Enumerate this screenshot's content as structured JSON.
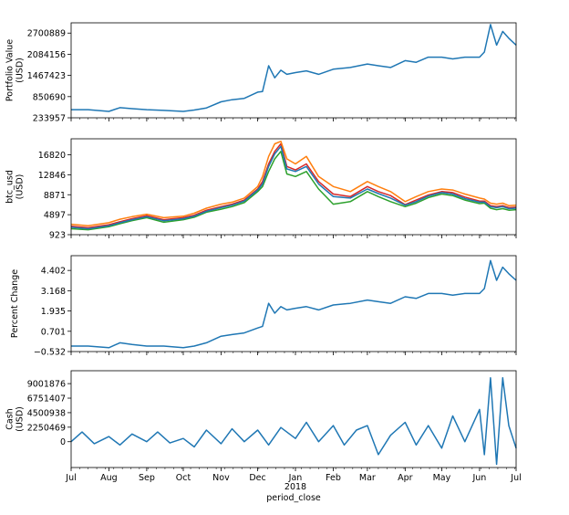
{
  "chart_data": [
    {
      "type": "line",
      "ylabel": "Portfolio Value\n(USD)",
      "ylim": [
        233957,
        3000000
      ],
      "yticks": [
        "233957",
        "850690",
        "1467423",
        "2084156",
        "2700889"
      ],
      "yticks_values": [
        233957,
        850690,
        1467423,
        2084156,
        2700889
      ],
      "series": [
        {
          "color": "#1f77b4",
          "x": [
            "2017-07-01",
            "2017-07-15",
            "2017-08-01",
            "2017-08-10",
            "2017-08-20",
            "2017-09-01",
            "2017-09-15",
            "2017-10-01",
            "2017-10-10",
            "2017-10-20",
            "2017-11-01",
            "2017-11-10",
            "2017-11-20",
            "2017-12-01",
            "2017-12-05",
            "2017-12-10",
            "2017-12-15",
            "2017-12-20",
            "2017-12-25",
            "2018-01-01",
            "2018-01-10",
            "2018-01-20",
            "2018-02-01",
            "2018-02-15",
            "2018-03-01",
            "2018-03-10",
            "2018-03-20",
            "2018-04-01",
            "2018-04-10",
            "2018-04-20",
            "2018-05-01",
            "2018-05-10",
            "2018-05-20",
            "2018-06-01",
            "2018-06-05",
            "2018-06-10",
            "2018-06-15",
            "2018-06-20",
            "2018-06-25",
            "2018-07-01"
          ],
          "y": [
            470000,
            470000,
            420000,
            530000,
            500000,
            470000,
            450000,
            420000,
            460000,
            520000,
            700000,
            760000,
            800000,
            980000,
            1000000,
            1750000,
            1400000,
            1620000,
            1500000,
            1550000,
            1600000,
            1500000,
            1650000,
            1700000,
            1800000,
            1750000,
            1700000,
            1900000,
            1850000,
            2000000,
            2000000,
            1950000,
            2000000,
            2000000,
            2150000,
            2950000,
            2350000,
            2750000,
            2550000,
            2350000
          ]
        }
      ]
    },
    {
      "type": "line",
      "ylabel": "btc_usd\n(USD)",
      "ylim": [
        923,
        20000
      ],
      "yticks": [
        "923",
        "4897",
        "8871",
        "12846",
        "16820"
      ],
      "yticks_values": [
        923,
        4897,
        8871,
        12846,
        16820
      ],
      "x": [
        "2017-07-01",
        "2017-07-15",
        "2017-08-01",
        "2017-08-10",
        "2017-08-20",
        "2017-09-01",
        "2017-09-15",
        "2017-10-01",
        "2017-10-10",
        "2017-10-20",
        "2017-11-01",
        "2017-11-10",
        "2017-11-20",
        "2017-12-01",
        "2017-12-05",
        "2017-12-10",
        "2017-12-15",
        "2017-12-20",
        "2017-12-25",
        "2018-01-01",
        "2018-01-10",
        "2018-01-20",
        "2018-02-01",
        "2018-02-15",
        "2018-03-01",
        "2018-03-10",
        "2018-03-20",
        "2018-04-01",
        "2018-04-10",
        "2018-04-20",
        "2018-05-01",
        "2018-05-10",
        "2018-05-20",
        "2018-06-01",
        "2018-06-05",
        "2018-06-10",
        "2018-06-15",
        "2018-06-20",
        "2018-06-25",
        "2018-07-01"
      ],
      "series": [
        {
          "color": "#d62728",
          "y": [
            2600,
            2300,
            2900,
            3500,
            4100,
            4700,
            3900,
            4300,
            4800,
            5800,
            6500,
            7000,
            7800,
            10000,
            11500,
            15000,
            17500,
            19000,
            14500,
            13800,
            15000,
            11500,
            9000,
            8500,
            10500,
            9500,
            8700,
            6900,
            7800,
            8800,
            9500,
            9300,
            8400,
            7600,
            7600,
            6700,
            6500,
            6700,
            6300,
            6400
          ]
        },
        {
          "color": "#ff7f0e",
          "y": [
            3000,
            2700,
            3300,
            4000,
            4500,
            5000,
            4300,
            4600,
            5200,
            6200,
            7000,
            7400,
            8200,
            10500,
            12500,
            16500,
            19000,
            19500,
            16000,
            15000,
            16500,
            12500,
            10500,
            9500,
            11500,
            10500,
            9500,
            7500,
            8500,
            9500,
            10000,
            9800,
            9000,
            8200,
            8000,
            7200,
            7000,
            7200,
            6700,
            6800
          ]
        },
        {
          "color": "#2ca02c",
          "y": [
            2100,
            1900,
            2500,
            3100,
            3700,
            4300,
            3400,
            3900,
            4400,
            5400,
            6000,
            6500,
            7300,
            9500,
            10500,
            13500,
            16000,
            17500,
            13000,
            12500,
            13500,
            10000,
            7000,
            7500,
            9500,
            8500,
            7500,
            6500,
            7200,
            8300,
            9000,
            8700,
            7800,
            7100,
            7200,
            6200,
            5900,
            6100,
            5800,
            5900
          ]
        },
        {
          "color": "#1f77b4",
          "y": [
            2400,
            2100,
            2700,
            3300,
            3900,
            4500,
            3700,
            4100,
            4600,
            5600,
            6300,
            6800,
            7600,
            9800,
            11000,
            14500,
            17000,
            18500,
            14000,
            13500,
            14500,
            11000,
            8500,
            8200,
            10000,
            9100,
            8200,
            6800,
            7500,
            8600,
            9300,
            9000,
            8100,
            7400,
            7400,
            6500,
            6300,
            6500,
            6100,
            6200
          ]
        }
      ]
    },
    {
      "type": "line",
      "ylabel": "Percent Change",
      "ylim": [
        -0.532,
        5.3
      ],
      "yticks": [
        "−0.532",
        "0.701",
        "1.935",
        "3.168",
        "4.402"
      ],
      "yticks_values": [
        -0.532,
        0.701,
        1.935,
        3.168,
        4.402
      ],
      "series": [
        {
          "color": "#1f77b4",
          "x": [
            "2017-07-01",
            "2017-07-15",
            "2017-08-01",
            "2017-08-10",
            "2017-08-20",
            "2017-09-01",
            "2017-09-15",
            "2017-10-01",
            "2017-10-10",
            "2017-10-20",
            "2017-11-01",
            "2017-11-10",
            "2017-11-20",
            "2017-12-01",
            "2017-12-05",
            "2017-12-10",
            "2017-12-15",
            "2017-12-20",
            "2017-12-25",
            "2018-01-01",
            "2018-01-10",
            "2018-01-20",
            "2018-02-01",
            "2018-02-15",
            "2018-03-01",
            "2018-03-10",
            "2018-03-20",
            "2018-04-01",
            "2018-04-10",
            "2018-04-20",
            "2018-05-01",
            "2018-05-10",
            "2018-05-20",
            "2018-06-01",
            "2018-06-05",
            "2018-06-10",
            "2018-06-15",
            "2018-06-20",
            "2018-06-25",
            "2018-07-01"
          ],
          "y": [
            -0.2,
            -0.2,
            -0.3,
            0.0,
            -0.1,
            -0.2,
            -0.2,
            -0.3,
            -0.2,
            0.0,
            0.4,
            0.5,
            0.6,
            0.9,
            1.0,
            2.4,
            1.8,
            2.2,
            2.0,
            2.1,
            2.2,
            2.0,
            2.3,
            2.4,
            2.6,
            2.5,
            2.4,
            2.8,
            2.7,
            3.0,
            3.0,
            2.9,
            3.0,
            3.0,
            3.3,
            5.0,
            3.8,
            4.6,
            4.2,
            3.8
          ]
        }
      ]
    },
    {
      "type": "line",
      "ylabel": "Cash\n(USD)",
      "ylim": [
        -4000000,
        11000000
      ],
      "yticks": [
        "0",
        "2250469",
        "4500938",
        "6751407",
        "9001876"
      ],
      "yticks_values": [
        0,
        2250469,
        4500938,
        6751407,
        9001876
      ],
      "series": [
        {
          "color": "#1f77b4",
          "x": [
            "2017-07-01",
            "2017-07-10",
            "2017-07-20",
            "2017-08-01",
            "2017-08-10",
            "2017-08-20",
            "2017-09-01",
            "2017-09-10",
            "2017-09-20",
            "2017-10-01",
            "2017-10-10",
            "2017-10-20",
            "2017-11-01",
            "2017-11-10",
            "2017-11-20",
            "2017-12-01",
            "2017-12-10",
            "2017-12-20",
            "2018-01-01",
            "2018-01-10",
            "2018-01-20",
            "2018-02-01",
            "2018-02-10",
            "2018-02-20",
            "2018-03-01",
            "2018-03-10",
            "2018-03-20",
            "2018-04-01",
            "2018-04-10",
            "2018-04-20",
            "2018-05-01",
            "2018-05-10",
            "2018-05-20",
            "2018-06-01",
            "2018-06-05",
            "2018-06-10",
            "2018-06-15",
            "2018-06-20",
            "2018-06-25",
            "2018-07-01"
          ],
          "y": [
            0,
            1500000,
            -300000,
            800000,
            -500000,
            1200000,
            0,
            1500000,
            -200000,
            500000,
            -800000,
            1800000,
            -300000,
            2000000,
            0,
            1800000,
            -500000,
            2200000,
            500000,
            3000000,
            0,
            2500000,
            -500000,
            1800000,
            2500000,
            -2000000,
            1000000,
            3000000,
            -500000,
            2500000,
            -1000000,
            4000000,
            0,
            5000000,
            -2000000,
            9900000,
            -3500000,
            9900000,
            2500000,
            -1000000
          ]
        }
      ]
    }
  ],
  "x_axis": {
    "tick_labels": [
      "Jul",
      "Aug",
      "Sep",
      "Oct",
      "Nov",
      "Dec",
      "Jan",
      "Feb",
      "Mar",
      "Apr",
      "May",
      "Jun",
      "Jul"
    ],
    "tick_dates": [
      "2017-07-01",
      "2017-08-01",
      "2017-09-01",
      "2017-10-01",
      "2017-11-01",
      "2017-12-01",
      "2018-01-01",
      "2018-02-01",
      "2018-03-01",
      "2018-04-01",
      "2018-05-01",
      "2018-06-01",
      "2018-07-01"
    ],
    "year_label": "2018",
    "year_label_date": "2018-01-01",
    "label": "period_close",
    "range": [
      "2017-07-01",
      "2018-07-01"
    ]
  }
}
